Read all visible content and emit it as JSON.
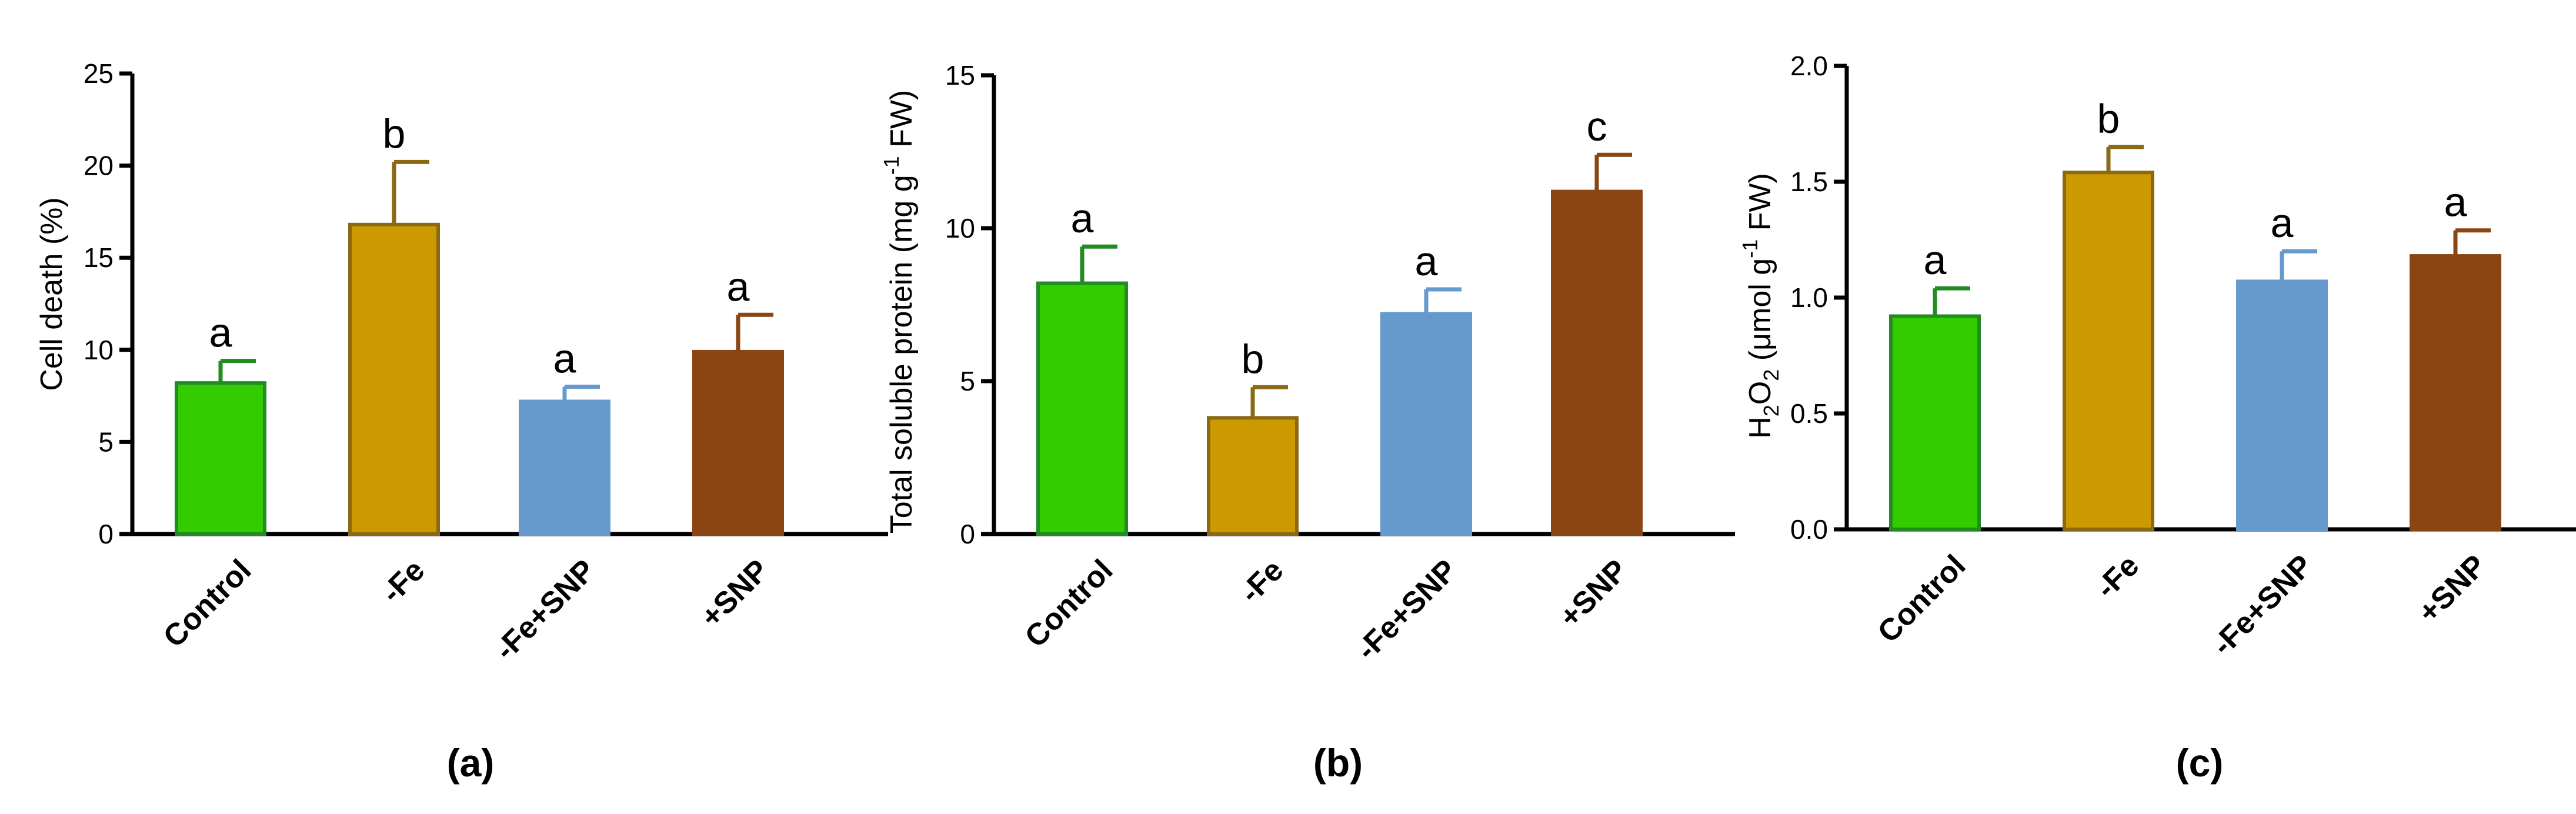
{
  "chart_data": [
    {
      "type": "bar",
      "panel_label": "(a)",
      "ylabel": "Cell death (%)",
      "categories": [
        "Control",
        "-Fe",
        "-Fe+SNP",
        "+SNP"
      ],
      "values": [
        8.2,
        16.8,
        7.2,
        9.9
      ],
      "errors": [
        1.2,
        3.4,
        0.8,
        2.0
      ],
      "significance": [
        "a",
        "b",
        "a",
        "a"
      ],
      "ylim": [
        0,
        25
      ],
      "yticks": [
        0,
        5,
        10,
        15,
        20,
        25
      ],
      "ytick_labels": [
        "0",
        "5",
        "10",
        "15",
        "20",
        "25"
      ],
      "colors": [
        "#33cc00",
        "#cc9900",
        "#6699cc",
        "#8b4513"
      ],
      "edge_colors": [
        "#228b22",
        "#8b6914",
        "#6699cc",
        "#8b4513"
      ]
    },
    {
      "type": "bar",
      "panel_label": "(b)",
      "ylabel": "Total soluble protein (mg g",
      "ylabel_sup": "-1",
      "ylabel_tail": " FW)",
      "categories": [
        "Control",
        "-Fe",
        "-Fe+SNP",
        "+SNP"
      ],
      "values": [
        8.2,
        3.8,
        7.2,
        11.2
      ],
      "errors": [
        1.2,
        1.0,
        0.8,
        1.2
      ],
      "significance": [
        "a",
        "b",
        "a",
        "c"
      ],
      "ylim": [
        0,
        15
      ],
      "yticks": [
        0,
        5,
        10,
        15
      ],
      "ytick_labels": [
        "0",
        "5",
        "10",
        "15"
      ],
      "colors": [
        "#33cc00",
        "#cc9900",
        "#6699cc",
        "#8b4513"
      ],
      "edge_colors": [
        "#228b22",
        "#8b6914",
        "#6699cc",
        "#8b4513"
      ]
    },
    {
      "type": "bar",
      "panel_label": "(c)",
      "ylabel": "H",
      "ylabel_sub1": "2",
      "ylabel_mid": "O",
      "ylabel_sub2": "2",
      "ylabel_rest": " (μmol g",
      "ylabel_sup": "-1",
      "ylabel_tail": " FW)",
      "categories": [
        "Control",
        "-Fe",
        "-Fe+SNP",
        "+SNP"
      ],
      "values": [
        0.92,
        1.54,
        1.07,
        1.18
      ],
      "errors": [
        0.12,
        0.11,
        0.13,
        0.11
      ],
      "significance": [
        "a",
        "b",
        "a",
        "a"
      ],
      "ylim": [
        0,
        2.0
      ],
      "yticks": [
        0,
        0.5,
        1.0,
        1.5,
        2.0
      ],
      "ytick_labels": [
        "0.0",
        "0.5",
        "1.0",
        "1.5",
        "2.0"
      ],
      "colors": [
        "#33cc00",
        "#cc9900",
        "#6699cc",
        "#8b4513"
      ],
      "edge_colors": [
        "#228b22",
        "#8b6914",
        "#6699cc",
        "#8b4513"
      ]
    }
  ]
}
